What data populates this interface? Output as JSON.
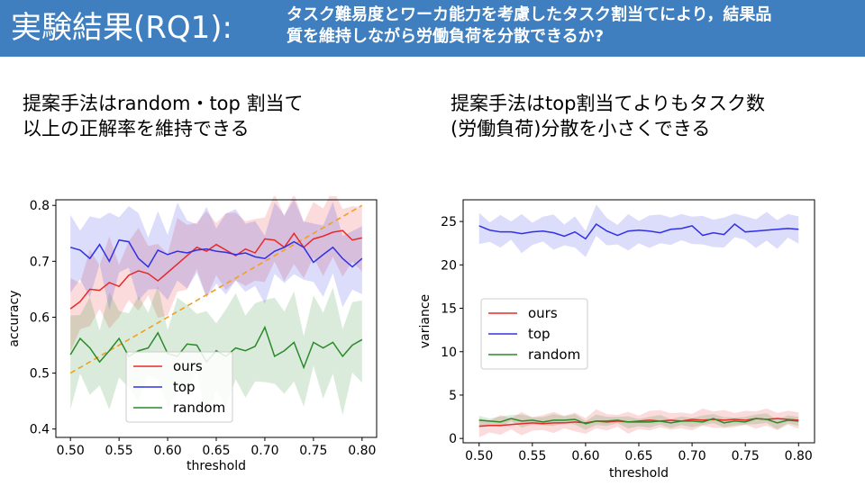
{
  "header": {
    "title": "実験結果(RQ1):",
    "subtitle_line1": "タスク難易度とワーカ能力を考慮したタスク割当てにより，結果品",
    "subtitle_line2": "質を維持しながら労働負荷を分散できるか?"
  },
  "claims": {
    "left_line1": "提案手法はrandom・top 割当て",
    "left_line2": "以上の正解率を維持できる",
    "right_line1": "提案手法はtop割当てよりもタスク数",
    "right_line2": "(労働負荷)分散を小さくできる"
  },
  "colors": {
    "ours": "#e62a2a",
    "top": "#3030e6",
    "random": "#2a8a2a",
    "diagonal": "#f0a020",
    "header": "#3f7fc0"
  },
  "chart_data": [
    {
      "type": "line",
      "xlabel": "threshold",
      "ylabel": "accuracy",
      "xlim": [
        0.485,
        0.815
      ],
      "ylim": [
        0.385,
        0.81
      ],
      "xticks": [
        "0.50",
        "0.55",
        "0.60",
        "0.65",
        "0.70",
        "0.75",
        "0.80"
      ],
      "yticks": [
        "0.4",
        "0.5",
        "0.6",
        "0.7",
        "0.8"
      ],
      "legend_position": "lower-center",
      "x": [
        0.5,
        0.51,
        0.52,
        0.53,
        0.54,
        0.55,
        0.56,
        0.57,
        0.58,
        0.59,
        0.6,
        0.61,
        0.62,
        0.63,
        0.64,
        0.65,
        0.66,
        0.67,
        0.68,
        0.69,
        0.7,
        0.71,
        0.72,
        0.73,
        0.74,
        0.75,
        0.76,
        0.77,
        0.78,
        0.79,
        0.8
      ],
      "reference_line": {
        "x": [
          0.5,
          0.8
        ],
        "y": [
          0.5,
          0.8
        ]
      },
      "series": [
        {
          "name": "ours",
          "values": [
            0.615,
            0.628,
            0.65,
            0.648,
            0.662,
            0.655,
            0.675,
            0.683,
            0.678,
            0.665,
            0.68,
            0.695,
            0.71,
            0.725,
            0.718,
            0.73,
            0.72,
            0.71,
            0.722,
            0.715,
            0.74,
            0.738,
            0.725,
            0.75,
            0.725,
            0.74,
            0.745,
            0.752,
            0.755,
            0.738,
            0.742
          ],
          "band": 0.055
        },
        {
          "name": "top",
          "values": [
            0.725,
            0.72,
            0.705,
            0.73,
            0.7,
            0.738,
            0.735,
            0.705,
            0.69,
            0.72,
            0.712,
            0.718,
            0.715,
            0.72,
            0.722,
            0.718,
            0.716,
            0.712,
            0.715,
            0.708,
            0.705,
            0.718,
            0.725,
            0.735,
            0.725,
            0.698,
            0.712,
            0.725,
            0.705,
            0.69,
            0.705
          ],
          "band": 0.058
        },
        {
          "name": "random",
          "values": [
            0.533,
            0.562,
            0.545,
            0.52,
            0.54,
            0.562,
            0.53,
            0.54,
            0.545,
            0.572,
            0.535,
            0.53,
            0.552,
            0.55,
            0.52,
            0.54,
            0.53,
            0.545,
            0.54,
            0.548,
            0.582,
            0.53,
            0.54,
            0.555,
            0.51,
            0.555,
            0.545,
            0.555,
            0.53,
            0.55,
            0.56
          ],
          "band": 0.07
        }
      ]
    },
    {
      "type": "line",
      "xlabel": "threshold",
      "ylabel": "variance",
      "xlim": [
        0.485,
        0.815
      ],
      "ylim": [
        -0.5,
        27.5
      ],
      "xticks": [
        "0.50",
        "0.55",
        "0.60",
        "0.65",
        "0.70",
        "0.75",
        "0.80"
      ],
      "yticks": [
        "0",
        "5",
        "10",
        "15",
        "20",
        "25"
      ],
      "legend_position": "center-left",
      "x": [
        0.5,
        0.51,
        0.52,
        0.53,
        0.54,
        0.55,
        0.56,
        0.57,
        0.58,
        0.59,
        0.6,
        0.61,
        0.62,
        0.63,
        0.64,
        0.65,
        0.66,
        0.67,
        0.68,
        0.69,
        0.7,
        0.71,
        0.72,
        0.73,
        0.74,
        0.75,
        0.76,
        0.77,
        0.78,
        0.79,
        0.8
      ],
      "series": [
        {
          "name": "ours",
          "values": [
            1.4,
            1.5,
            1.5,
            1.6,
            1.7,
            1.8,
            1.7,
            1.8,
            1.8,
            1.9,
            1.8,
            2.0,
            1.9,
            2.0,
            1.9,
            2.0,
            2.1,
            2.0,
            2.1,
            2.0,
            2.2,
            2.1,
            2.2,
            2.1,
            2.2,
            2.1,
            2.3,
            2.2,
            2.3,
            2.2,
            2.1
          ],
          "band": 0.9
        },
        {
          "name": "top",
          "values": [
            24.5,
            24.0,
            23.8,
            23.8,
            23.6,
            23.8,
            23.9,
            23.7,
            23.3,
            23.8,
            23.0,
            24.7,
            23.9,
            23.4,
            23.9,
            24.0,
            23.9,
            23.7,
            24.1,
            24.2,
            24.5,
            23.4,
            23.7,
            23.5,
            24.7,
            23.8,
            23.9,
            24.0,
            24.1,
            24.2,
            24.1
          ],
          "band": 1.5
        },
        {
          "name": "random",
          "values": [
            2.1,
            2.0,
            1.9,
            2.3,
            2.0,
            2.1,
            1.9,
            2.1,
            2.1,
            2.2,
            1.7,
            2.0,
            2.0,
            2.1,
            1.9,
            1.9,
            1.9,
            2.0,
            1.8,
            2.0,
            2.0,
            1.9,
            2.3,
            1.8,
            2.0,
            1.9,
            2.3,
            2.2,
            1.8,
            2.1,
            2.0
          ],
          "band": 0.5
        }
      ]
    }
  ]
}
